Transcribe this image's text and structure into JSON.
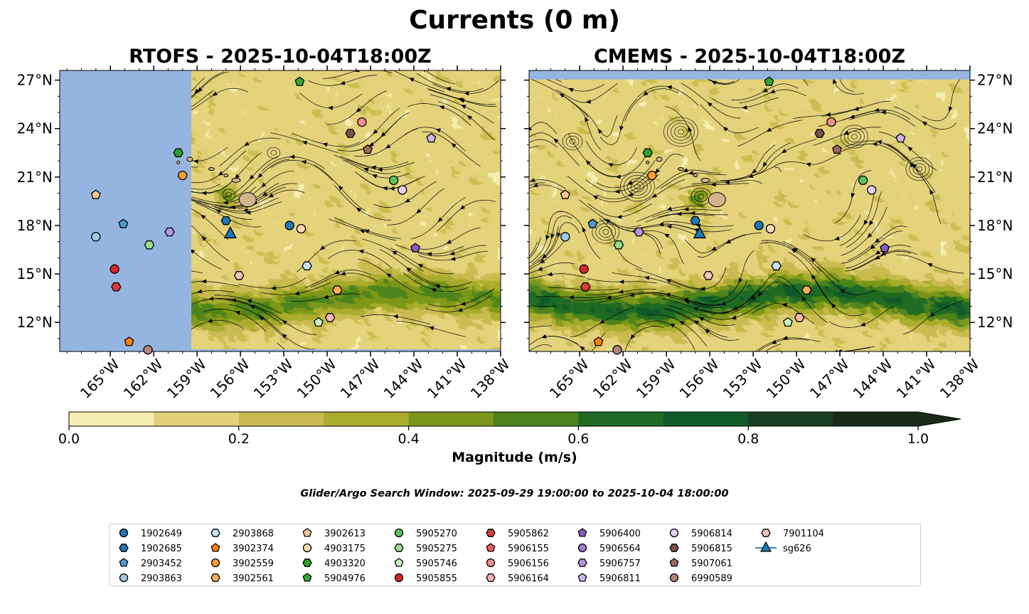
{
  "title": "Currents (0 m)",
  "panels": [
    {
      "title": "RTOFS - 2025-10-04T18:00Z"
    },
    {
      "title": "CMEMS - 2025-10-04T18:00Z"
    }
  ],
  "map": {
    "lon_range": [
      -168.5,
      -138
    ],
    "lat_range": [
      10.2,
      27.6
    ],
    "x_ticks": [
      "165°W",
      "162°W",
      "159°W",
      "156°W",
      "153°W",
      "150°W",
      "147°W",
      "144°W",
      "141°W",
      "138°W"
    ],
    "x_tick_values": [
      -165,
      -162,
      -159,
      -156,
      -153,
      -150,
      -147,
      -144,
      -141,
      -138
    ],
    "y_ticks": [
      "12°N",
      "15°N",
      "18°N",
      "21°N",
      "24°N",
      "27°N"
    ],
    "y_tick_values": [
      12,
      15,
      18,
      21,
      24,
      27
    ],
    "land_color": "#d2b48c",
    "ocean_nodata_color": "#95b4e0",
    "rtofs_data_west_lon": -159.4,
    "cmems_nodata_north_lat": 27.0
  },
  "colorbar": {
    "label": "Magnitude (m/s)",
    "ticks": [
      "0.0",
      "0.2",
      "0.4",
      "0.6",
      "0.8",
      "1.0"
    ],
    "tick_values": [
      0,
      0.2,
      0.4,
      0.6,
      0.8,
      1.0
    ],
    "colors": [
      "#f6eeb0",
      "#e2d17a",
      "#c9ba4f",
      "#a9ac2c",
      "#7e9718",
      "#4c831c",
      "#1f6a24",
      "#105a2a",
      "#1b3d23",
      "#1a2b1c"
    ],
    "extend": "max"
  },
  "search_window": "Glider/Argo Search Window: 2025-09-29 19:00:00 to 2025-10-04 18:00:00",
  "legend": {
    "entries": [
      {
        "label": "1902649",
        "color": "#1f77b4",
        "marker": "circle"
      },
      {
        "label": "1902685",
        "color": "#1f77b4",
        "marker": "hexagon"
      },
      {
        "label": "2903452",
        "color": "#4a98cf",
        "marker": "pentagon"
      },
      {
        "label": "2903863",
        "color": "#9ecae1",
        "marker": "circle"
      },
      {
        "label": "2903868",
        "color": "#c6e2f3",
        "marker": "hexagon"
      },
      {
        "label": "3902374",
        "color": "#ff7f0e",
        "marker": "pentagon"
      },
      {
        "label": "3902559",
        "color": "#ff9b3a",
        "marker": "circle"
      },
      {
        "label": "3902561",
        "color": "#ffac5c",
        "marker": "hexagon"
      },
      {
        "label": "3902613",
        "color": "#ffc793",
        "marker": "pentagon"
      },
      {
        "label": "4903175",
        "color": "#ffdcb8",
        "marker": "circle"
      },
      {
        "label": "4903320",
        "color": "#2ca02c",
        "marker": "hexagon"
      },
      {
        "label": "5904976",
        "color": "#33a833",
        "marker": "pentagon"
      },
      {
        "label": "5905270",
        "color": "#5cbf5c",
        "marker": "circle"
      },
      {
        "label": "5905275",
        "color": "#98df8a",
        "marker": "hexagon"
      },
      {
        "label": "5905746",
        "color": "#c7f2c0",
        "marker": "pentagon"
      },
      {
        "label": "5905855",
        "color": "#d62728",
        "marker": "circle"
      },
      {
        "label": "5905862",
        "color": "#dc3a3b",
        "marker": "hexagon"
      },
      {
        "label": "5906155",
        "color": "#e66060",
        "marker": "pentagon"
      },
      {
        "label": "5906156",
        "color": "#f08f8f",
        "marker": "circle"
      },
      {
        "label": "5906164",
        "color": "#f7b6b6",
        "marker": "hexagon"
      },
      {
        "label": "5906400",
        "color": "#8a5cc2",
        "marker": "pentagon"
      },
      {
        "label": "5906564",
        "color": "#a07ccc",
        "marker": "circle"
      },
      {
        "label": "5906757",
        "color": "#b493dc",
        "marker": "hexagon"
      },
      {
        "label": "5906811",
        "color": "#cdb5ec",
        "marker": "pentagon"
      },
      {
        "label": "5906814",
        "color": "#e2cdf4",
        "marker": "circle"
      },
      {
        "label": "5906815",
        "color": "#7b5047",
        "marker": "hexagon"
      },
      {
        "label": "5907061",
        "color": "#9c6a60",
        "marker": "pentagon"
      },
      {
        "label": "6990589",
        "color": "#b3857a",
        "marker": "circle"
      },
      {
        "label": "7901104",
        "color": "#eec3b8",
        "marker": "hexagon"
      },
      {
        "label": "sg626",
        "color": "#1f77b4",
        "marker": "triangle"
      }
    ]
  },
  "floats": [
    {
      "id": "3902613",
      "lon": -166.0,
      "lat": 19.9
    },
    {
      "id": "2903863",
      "lon": -166.0,
      "lat": 17.3
    },
    {
      "id": "2903452",
      "lon": -164.1,
      "lat": 18.1
    },
    {
      "id": "5905855",
      "lon": -164.7,
      "lat": 15.3
    },
    {
      "id": "5905862",
      "lon": -164.6,
      "lat": 14.2
    },
    {
      "id": "3902374",
      "lon": -163.7,
      "lat": 10.8
    },
    {
      "id": "6990589",
      "lon": -162.4,
      "lat": 10.3
    },
    {
      "id": "5905275",
      "lon": -162.3,
      "lat": 16.8
    },
    {
      "id": "5906757",
      "lon": -160.9,
      "lat": 17.6
    },
    {
      "id": "4903320",
      "lon": -160.3,
      "lat": 22.5
    },
    {
      "id": "3902559",
      "lon": -160.0,
      "lat": 21.1
    },
    {
      "id": "1902685",
      "lon": -157.0,
      "lat": 18.3
    },
    {
      "id": "7901104",
      "lon": -156.1,
      "lat": 14.9
    },
    {
      "id": "1902649",
      "lon": -152.6,
      "lat": 18.0
    },
    {
      "id": "4903175",
      "lon": -151.8,
      "lat": 17.8
    },
    {
      "id": "2903868",
      "lon": -151.4,
      "lat": 15.5
    },
    {
      "id": "5905746",
      "lon": -150.6,
      "lat": 12.0
    },
    {
      "id": "5906164",
      "lon": -149.8,
      "lat": 12.3
    },
    {
      "id": "3902561",
      "lon": -149.3,
      "lat": 14.0
    },
    {
      "id": "5904976",
      "lon": -151.9,
      "lat": 26.9
    },
    {
      "id": "5906815",
      "lon": -148.4,
      "lat": 23.7
    },
    {
      "id": "5906156",
      "lon": -147.6,
      "lat": 24.4
    },
    {
      "id": "5907061",
      "lon": -147.2,
      "lat": 22.7
    },
    {
      "id": "5905270",
      "lon": -145.4,
      "lat": 20.8
    },
    {
      "id": "5906814",
      "lon": -144.8,
      "lat": 20.2
    },
    {
      "id": "5906400",
      "lon": -143.9,
      "lat": 16.6
    },
    {
      "id": "5906811",
      "lon": -142.8,
      "lat": 23.4
    }
  ],
  "glider": {
    "id": "sg626",
    "lon": -156.7,
    "lat": 17.5
  }
}
